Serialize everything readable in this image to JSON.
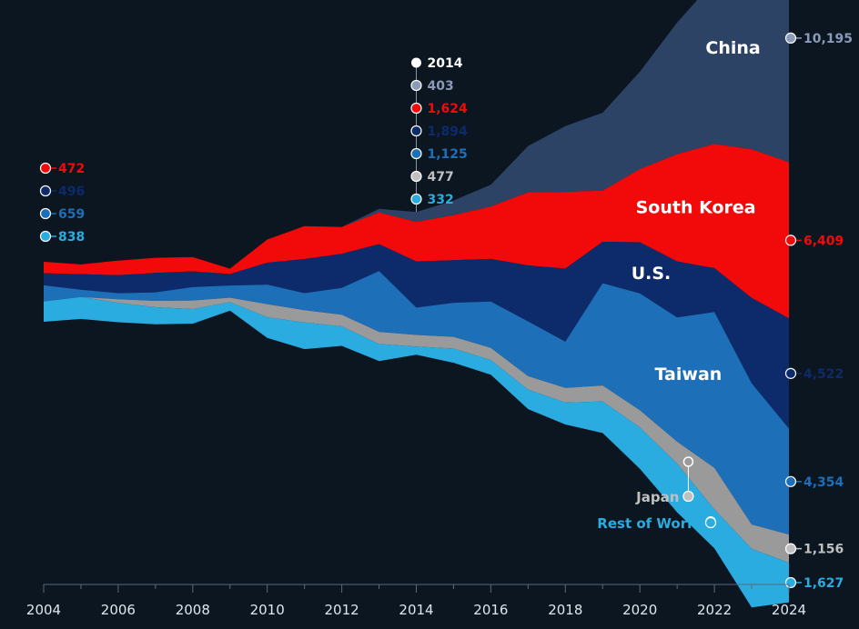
{
  "chart_data": {
    "type": "area",
    "subtype": "streamgraph",
    "title": "",
    "xlabel": "",
    "ylabel": "",
    "x": [
      2004,
      2005,
      2006,
      2007,
      2008,
      2009,
      2010,
      2011,
      2012,
      2013,
      2014,
      2015,
      2016,
      2017,
      2018,
      2019,
      2020,
      2021,
      2022,
      2023,
      2024
    ],
    "xticks": [
      "2004",
      "2006",
      "2008",
      "2010",
      "2012",
      "2014",
      "2016",
      "2018",
      "2020",
      "2022",
      "2024"
    ],
    "colors": {
      "background": "#0b1620",
      "China": "#2c4366",
      "South Korea": "#f20a0a",
      "U.S.": "#0d2a6b",
      "Taiwan": "#1d6fb8",
      "Japan": "#9a9a9a",
      "Rest of World": "#2aace0",
      "axis": "#5a6a7a",
      "label": "#ffffff",
      "highlight": "#ffffff"
    },
    "series": [
      {
        "name": "China",
        "label": "China",
        "color": "#2c4366",
        "values": [
          0,
          0,
          0,
          0,
          0,
          0,
          0,
          0,
          0,
          150,
          403,
          600,
          900,
          1900,
          2700,
          3200,
          4000,
          5400,
          6700,
          9600,
          10195
        ]
      },
      {
        "name": "South Korea",
        "label": "South Korea",
        "color": "#f20a0a",
        "values": [
          472,
          400,
          600,
          620,
          580,
          220,
          950,
          1350,
          1100,
          1300,
          1624,
          1850,
          2150,
          3000,
          3150,
          2100,
          3000,
          4400,
          5100,
          6100,
          6409
        ]
      },
      {
        "name": "U.S.",
        "label": "U.S.",
        "color": "#0d2a6b",
        "values": [
          496,
          640,
          740,
          800,
          650,
          470,
          900,
          1400,
          1400,
          1100,
          1894,
          1750,
          1750,
          2300,
          3000,
          1700,
          2100,
          2300,
          1800,
          3500,
          4522
        ]
      },
      {
        "name": "Taiwan",
        "label": "Taiwan",
        "color": "#1d6fb8",
        "values": [
          659,
          300,
          250,
          350,
          550,
          500,
          800,
          700,
          1100,
          2500,
          1125,
          1400,
          1900,
          2250,
          1900,
          4200,
          4800,
          5100,
          6400,
          5800,
          4354
        ]
      },
      {
        "name": "Japan",
        "label": "Japan",
        "color": "#9a9a9a",
        "values": [
          0,
          0,
          140,
          260,
          350,
          180,
          540,
          500,
          480,
          500,
          477,
          480,
          500,
          550,
          600,
          650,
          700,
          900,
          1700,
          1000,
          1156
        ]
      },
      {
        "name": "Rest of World",
        "label": "Rest of World",
        "color": "#2aace0",
        "values": [
          838,
          900,
          800,
          700,
          600,
          350,
          850,
          1100,
          800,
          700,
          332,
          580,
          600,
          800,
          900,
          1300,
          1700,
          2000,
          1600,
          2400,
          1627
        ]
      }
    ],
    "annotations": {
      "2004": {
        "year": "2004",
        "values": [
          {
            "series": "South Korea",
            "text": "472"
          },
          {
            "series": "U.S.",
            "text": "496"
          },
          {
            "series": "Taiwan",
            "text": "659"
          },
          {
            "series": "Rest of World",
            "text": "838"
          }
        ]
      },
      "2014": {
        "year": "2014",
        "values": [
          {
            "series": "China",
            "text": "403"
          },
          {
            "series": "South Korea",
            "text": "1,624"
          },
          {
            "series": "U.S.",
            "text": "1,894"
          },
          {
            "series": "Taiwan",
            "text": "1,125"
          },
          {
            "series": "Japan",
            "text": "477"
          },
          {
            "series": "Rest of World",
            "text": "332"
          }
        ]
      },
      "2024": {
        "year": "2024",
        "values": [
          {
            "series": "China",
            "text": "10,195"
          },
          {
            "series": "South Korea",
            "text": "6,409"
          },
          {
            "series": "U.S.",
            "text": "4,522"
          },
          {
            "series": "Taiwan",
            "text": "4,354"
          },
          {
            "series": "Japan",
            "text": "1,156"
          },
          {
            "series": "Rest of World",
            "text": "1,627"
          }
        ]
      }
    },
    "legend": "inline labels"
  }
}
